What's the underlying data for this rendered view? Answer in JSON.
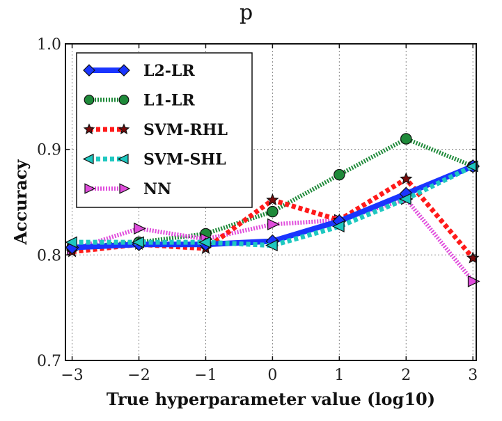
{
  "top_text": "p",
  "chart_data": {
    "type": "line",
    "title": "",
    "xlabel": "True hyperparameter value (log10)",
    "ylabel": "Accuracy",
    "xlim": [
      -3.1,
      3.05
    ],
    "ylim": [
      0.7,
      1.0
    ],
    "xticks": [
      -3,
      -2,
      -1,
      0,
      1,
      2,
      3
    ],
    "xtick_labels": [
      "−3",
      "−2",
      "−1",
      "0",
      "1",
      "2",
      "3"
    ],
    "yticks": [
      0.7,
      0.8,
      0.9,
      1.0
    ],
    "ytick_labels": [
      "0.7",
      "0.8",
      "0.9",
      "1.0"
    ],
    "grid": true,
    "legend_position": "top-left",
    "x": [
      -3,
      -2,
      -1,
      0,
      1,
      2,
      3
    ],
    "series": [
      {
        "name": "L2-LR",
        "values": [
          0.807,
          0.81,
          0.81,
          0.813,
          0.832,
          0.858,
          0.884
        ],
        "color": "#1a35ff",
        "marker": "diamond",
        "dash": "solid"
      },
      {
        "name": "L1-LR",
        "values": [
          0.807,
          0.812,
          0.82,
          0.841,
          0.876,
          0.91,
          0.884
        ],
        "color": "#1f8a3a",
        "marker": "circle",
        "dash": "dotted"
      },
      {
        "name": "SVM-RHL",
        "values": [
          0.803,
          0.81,
          0.806,
          0.852,
          0.833,
          0.872,
          0.797
        ],
        "color": "#ff1a1a",
        "marker": "star",
        "dash": "dashed"
      },
      {
        "name": "SVM-SHL",
        "values": [
          0.812,
          0.812,
          0.812,
          0.809,
          0.827,
          0.853,
          0.884
        ],
        "color": "#1ec8c0",
        "marker": "triangle-left",
        "dash": "dashed"
      },
      {
        "name": "NN",
        "values": [
          0.805,
          0.825,
          0.815,
          0.829,
          0.833,
          0.853,
          0.775
        ],
        "color": "#e04cdc",
        "marker": "triangle-right",
        "dash": "dotted"
      }
    ]
  }
}
